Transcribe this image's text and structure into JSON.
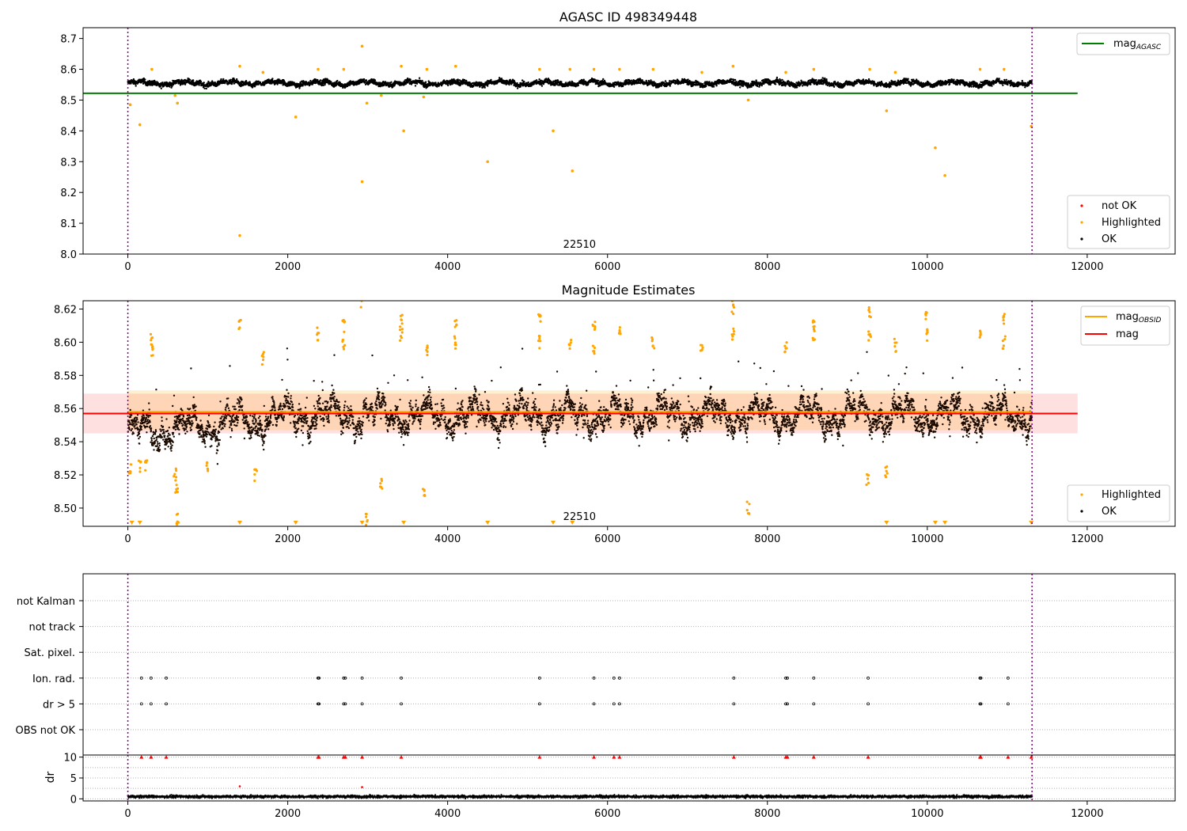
{
  "figure": {
    "title": "AGASC ID 498349448"
  },
  "chart_data": [
    {
      "type": "scatter",
      "panel": "agasc",
      "title": "AGASC ID 498349448",
      "xlim": [
        -560,
        13100
      ],
      "ylim": [
        8.0,
        8.735
      ],
      "xticks": [
        0,
        2000,
        4000,
        6000,
        8000,
        10000,
        12000
      ],
      "yticks": [
        8.0,
        8.1,
        8.2,
        8.3,
        8.4,
        8.5,
        8.6,
        8.7
      ],
      "ytick_decimals": 1,
      "annotation": "22510",
      "vlines": [
        0,
        11310
      ],
      "mag_agasc": 8.522,
      "hline_x": [
        -560,
        11880
      ],
      "legend_top": [
        {
          "label": "mag",
          "sub": "AGASC",
          "color": "#008000"
        }
      ],
      "legend_bottom": [
        {
          "label": "not OK",
          "color": "#ff0000"
        },
        {
          "label": "Highlighted",
          "color": "#ffa500"
        },
        {
          "label": "OK",
          "color": "#000000"
        }
      ],
      "ok_band": {
        "x_range": [
          0,
          11310
        ],
        "center": 8.555,
        "amplitude": 0.01,
        "scatter": 0.008
      },
      "highlighted": [
        [
          30,
          8.485
        ],
        [
          150,
          8.42
        ],
        [
          300,
          8.6
        ],
        [
          590,
          8.515
        ],
        [
          620,
          8.49
        ],
        [
          1400,
          8.06
        ],
        [
          1400,
          8.61
        ],
        [
          1690,
          8.59
        ],
        [
          2100,
          8.445
        ],
        [
          2380,
          8.6
        ],
        [
          2700,
          8.6
        ],
        [
          2930,
          8.235
        ],
        [
          2930,
          8.675
        ],
        [
          2990,
          8.49
        ],
        [
          3170,
          8.515
        ],
        [
          3420,
          8.61
        ],
        [
          3450,
          8.4
        ],
        [
          3700,
          8.51
        ],
        [
          3740,
          8.6
        ],
        [
          4100,
          8.61
        ],
        [
          4500,
          8.3
        ],
        [
          5150,
          8.6
        ],
        [
          5320,
          8.4
        ],
        [
          5530,
          8.6
        ],
        [
          5560,
          8.27
        ],
        [
          5830,
          8.6
        ],
        [
          6150,
          8.6
        ],
        [
          6570,
          8.6
        ],
        [
          7180,
          8.59
        ],
        [
          7570,
          8.61
        ],
        [
          7760,
          8.5
        ],
        [
          8230,
          8.59
        ],
        [
          8580,
          8.6
        ],
        [
          9280,
          8.6
        ],
        [
          9490,
          8.465
        ],
        [
          9600,
          8.59
        ],
        [
          10100,
          8.345
        ],
        [
          10220,
          8.255
        ],
        [
          10660,
          8.6
        ],
        [
          10960,
          8.6
        ],
        [
          11300,
          8.415
        ]
      ]
    },
    {
      "type": "scatter",
      "panel": "magnitude_estimates",
      "title": "Magnitude Estimates",
      "xlim": [
        -560,
        13100
      ],
      "ylim": [
        8.489,
        8.625
      ],
      "xticks": [
        0,
        2000,
        4000,
        6000,
        8000,
        10000,
        12000
      ],
      "yticks": [
        8.5,
        8.52,
        8.54,
        8.56,
        8.58,
        8.6,
        8.62
      ],
      "ytick_decimals": 2,
      "annotation": "22510",
      "vlines": [
        0,
        11310
      ],
      "mag": 8.557,
      "mag_band": [
        8.545,
        8.569
      ],
      "mag_obsid": 8.558,
      "obsid_band": [
        8.547,
        8.571
      ],
      "legend_top": [
        {
          "label": "mag",
          "sub": "OBSID",
          "color": "#ffa500"
        },
        {
          "label": "mag",
          "sub": "",
          "color": "#ff0000"
        }
      ],
      "legend_bottom": [
        {
          "label": "Highlighted",
          "color": "#ffa500"
        },
        {
          "label": "OK",
          "color": "#000000"
        }
      ],
      "highlighted": [
        [
          300,
          8.595
        ],
        [
          300,
          8.601
        ],
        [
          1400,
          8.61
        ],
        [
          1690,
          8.59
        ],
        [
          2380,
          8.605
        ],
        [
          2700,
          8.598
        ],
        [
          2700,
          8.61
        ],
        [
          2930,
          8.625
        ],
        [
          3420,
          8.605
        ],
        [
          3420,
          8.613
        ],
        [
          3740,
          8.595
        ],
        [
          4100,
          8.6
        ],
        [
          4100,
          8.612
        ],
        [
          5150,
          8.6
        ],
        [
          5150,
          8.615
        ],
        [
          5530,
          8.599
        ],
        [
          5830,
          8.595
        ],
        [
          5830,
          8.61
        ],
        [
          6150,
          8.605
        ],
        [
          6570,
          8.6
        ],
        [
          7180,
          8.595
        ],
        [
          7570,
          8.605
        ],
        [
          7570,
          8.621
        ],
        [
          8230,
          8.598
        ],
        [
          8580,
          8.605
        ],
        [
          8580,
          8.61
        ],
        [
          9280,
          8.605
        ],
        [
          9280,
          8.617
        ],
        [
          9600,
          8.598
        ],
        [
          9990,
          8.605
        ],
        [
          9990,
          8.615
        ],
        [
          10660,
          8.605
        ],
        [
          10960,
          8.6
        ],
        [
          10960,
          8.613
        ],
        [
          30,
          8.525
        ],
        [
          150,
          8.525
        ],
        [
          230,
          8.525
        ],
        [
          590,
          8.52
        ],
        [
          610,
          8.51
        ],
        [
          620,
          8.493
        ],
        [
          1000,
          8.525
        ],
        [
          1600,
          8.52
        ],
        [
          3170,
          8.515
        ],
        [
          3700,
          8.51
        ],
        [
          7760,
          8.5
        ],
        [
          9250,
          8.517
        ],
        [
          9490,
          8.522
        ],
        [
          2990,
          8.493
        ]
      ],
      "below_range_markers": [
        50,
        150,
        1400,
        2100,
        2930,
        3450,
        4500,
        5320,
        5560,
        9490,
        10100,
        10220,
        11300
      ]
    },
    {
      "type": "scatter",
      "panel": "flags",
      "xlim": [
        -560,
        13100
      ],
      "vlines": [
        0,
        11310
      ],
      "categories": [
        "not Kalman",
        "not track",
        "Sat. pixel.",
        "Ion. rad.",
        "dr > 5",
        "OBS not OK"
      ],
      "flag_points": {
        "Ion. rad.": [
          170,
          290,
          480,
          2380,
          2390,
          2700,
          2720,
          2930,
          3420,
          5150,
          5830,
          6080,
          6150,
          7580,
          8230,
          8250,
          8580,
          9260,
          10660,
          10670,
          11010
        ],
        "dr > 5": [
          170,
          290,
          480,
          2380,
          2390,
          2700,
          2720,
          2930,
          3420,
          5150,
          5830,
          6080,
          6150,
          7580,
          8230,
          8250,
          8580,
          9260,
          10660,
          10670,
          11010
        ]
      }
    },
    {
      "type": "scatter",
      "panel": "dr",
      "ylabel": "dr",
      "xlim": [
        -560,
        13100
      ],
      "ylim": [
        -0.5,
        10.5
      ],
      "xticks": [
        0,
        2000,
        4000,
        6000,
        8000,
        10000,
        12000
      ],
      "yticks": [
        0,
        5,
        10
      ],
      "vlines": [
        0,
        11310
      ],
      "capped_markers": [
        170,
        290,
        480,
        2380,
        2390,
        2700,
        2720,
        2930,
        3420,
        5150,
        5830,
        6080,
        6150,
        7580,
        8230,
        8250,
        8580,
        9260,
        10660,
        10670,
        11010,
        11300
      ],
      "highlighted": [
        [
          1400,
          3.0
        ],
        [
          2930,
          2.8
        ]
      ]
    }
  ]
}
